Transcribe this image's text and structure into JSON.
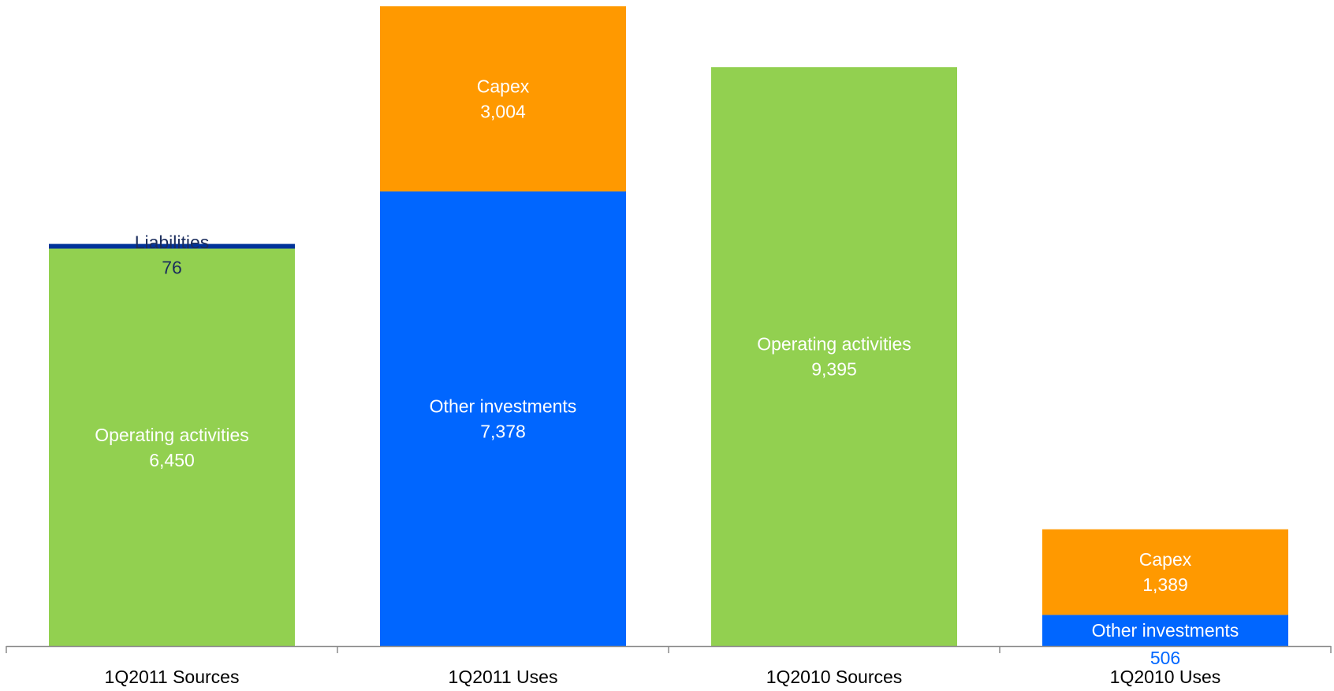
{
  "chart_data": {
    "type": "bar",
    "stacked": true,
    "categories": [
      "1Q2011 Sources",
      "1Q2011 Uses",
      "1Q2010 Sources",
      "1Q2010 Uses"
    ],
    "series": [
      {
        "name": "Operating activities",
        "color": "#92d050",
        "label_color": "#ffffff",
        "values": [
          6450,
          null,
          9395,
          null
        ],
        "labels": [
          "6,450",
          "",
          "9,395",
          ""
        ]
      },
      {
        "name": "Liabilities",
        "color": "#003399",
        "label_color": "#1a2c5c",
        "values": [
          76,
          null,
          null,
          null
        ],
        "labels": [
          "76",
          "",
          "",
          ""
        ]
      },
      {
        "name": "Other investments",
        "color": "#0066ff",
        "label_color": "#ffffff",
        "outside_label_color": "#0066ff",
        "values": [
          null,
          7378,
          null,
          506
        ],
        "labels": [
          "",
          "7,378",
          "",
          "506"
        ]
      },
      {
        "name": "Capex",
        "color": "#ff9900",
        "label_color": "#ffffff",
        "values": [
          null,
          3004,
          null,
          1389
        ],
        "labels": [
          "",
          "3,004",
          "",
          "1,389"
        ]
      }
    ],
    "ylim": [
      0,
      10382
    ],
    "grid": false,
    "legend": "none",
    "title": "",
    "xlabel": "",
    "ylabel": ""
  }
}
